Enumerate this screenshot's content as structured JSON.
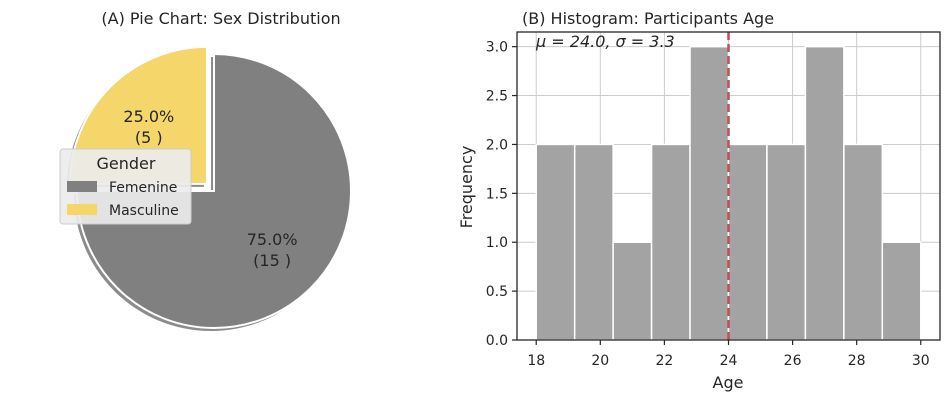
{
  "chart_data": [
    {
      "type": "pie",
      "title": "(A) Pie Chart: Sex Distribution",
      "legend_title": "Gender",
      "legend_position": "center-left",
      "slices": [
        {
          "label": "Femenine",
          "value": 15,
          "percent_label": "75.0%",
          "count_label": "(15 )",
          "color": "#808080",
          "exploded": false
        },
        {
          "label": "Masculine",
          "value": 5,
          "percent_label": "25.0%",
          "count_label": "(5 )",
          "color": "#f5d66b",
          "exploded": true
        }
      ],
      "shadow": true
    },
    {
      "type": "bar",
      "title": "(B) Histogram: Participants Age",
      "annotation": "μ = 24.0,  σ = 3.3",
      "xlabel": "Age",
      "ylabel": "Frequency",
      "xlim": [
        17.4,
        30.6
      ],
      "ylim": [
        0,
        3.15
      ],
      "grid": true,
      "bar_color": "#a3a3a3",
      "mean_line": {
        "value": 24.0,
        "color": "#c44e52",
        "style": "dashed"
      },
      "bins": [
        {
          "start": 18.0,
          "end": 19.2,
          "count": 2
        },
        {
          "start": 19.2,
          "end": 20.4,
          "count": 2
        },
        {
          "start": 20.4,
          "end": 21.6,
          "count": 1
        },
        {
          "start": 21.6,
          "end": 22.8,
          "count": 2
        },
        {
          "start": 22.8,
          "end": 24.0,
          "count": 3
        },
        {
          "start": 24.0,
          "end": 25.2,
          "count": 2
        },
        {
          "start": 25.2,
          "end": 26.4,
          "count": 2
        },
        {
          "start": 26.4,
          "end": 27.6,
          "count": 3
        },
        {
          "start": 27.6,
          "end": 28.8,
          "count": 2
        },
        {
          "start": 28.8,
          "end": 30.0,
          "count": 1
        }
      ],
      "xticks": [
        18,
        20,
        22,
        24,
        26,
        28,
        30
      ],
      "xtick_labels": [
        "18",
        "20",
        "22",
        "24",
        "26",
        "28",
        "30"
      ],
      "yticks": [
        0,
        0.5,
        1.0,
        1.5,
        2.0,
        2.5,
        3.0
      ],
      "ytick_labels": [
        "0.0",
        "0.5",
        "1.0",
        "1.5",
        "2.0",
        "2.5",
        "3.0"
      ]
    }
  ]
}
